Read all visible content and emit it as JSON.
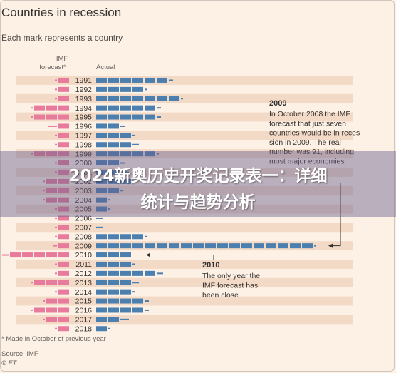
{
  "title": "Countries in recession",
  "subtitle": "Each mark represents a country",
  "footnote": "* Made in October of previous year",
  "source": "Source: IMF",
  "credit": "© FT",
  "overlay": {
    "line1": "2024新奥历史开奖记录表一：详细",
    "line2": "统计与趋势分析"
  },
  "colors": {
    "forecast": "#e87a9b",
    "actual": "#4a7fb0",
    "background": "#fdf1e6",
    "band": "#f3dac7",
    "text": "#33302e",
    "annotation_line": "#33302e"
  },
  "chart_data": {
    "type": "dot-strip",
    "title": "Countries in recession",
    "subtitle": "Each mark represents a country",
    "column_headers": {
      "forecast": "IMF forecast*",
      "actual": "Actual"
    },
    "categories": [
      "1991",
      "1992",
      "1993",
      "1994",
      "1995",
      "1996",
      "1997",
      "1998",
      "1999",
      "2000",
      "2001",
      "2002",
      "2003",
      "2004",
      "2005",
      "2006",
      "2007",
      "2008",
      "2009",
      "2010",
      "2011",
      "2012",
      "2013",
      "2014",
      "2015",
      "2016",
      "2017",
      "2018"
    ],
    "series": [
      {
        "name": "IMF forecast*",
        "values": [
          6,
          6,
          6,
          16,
          16,
          9,
          6,
          6,
          16,
          6,
          6,
          11,
          11,
          11,
          6,
          6,
          6,
          6,
          7,
          28,
          6,
          6,
          16,
          6,
          11,
          16,
          11,
          6
        ]
      },
      {
        "name": "Actual",
        "values": [
          32,
          21,
          36,
          27,
          27,
          12,
          16,
          18,
          26,
          12,
          14,
          16,
          11,
          6,
          6,
          3,
          3,
          21,
          91,
          15,
          16,
          28,
          18,
          16,
          22,
          22,
          14,
          6
        ]
      }
    ],
    "annotations": [
      {
        "label": "2009",
        "text": [
          "In October 2008 the IMF",
          "forecast that just seven",
          "countries would be in reces-",
          "sion in 2009. The real",
          "number was 91, including",
          "most major economies"
        ]
      },
      {
        "label": "2010",
        "text": [
          "The only year the",
          "IMF forecast has",
          "been close"
        ]
      }
    ]
  }
}
